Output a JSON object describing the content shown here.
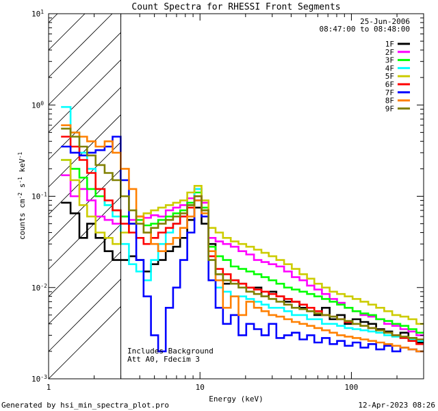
{
  "footer": {
    "generated_by": "Generated by hsi_min_spectra_plot.pro",
    "timestamp": "12-Apr-2023 08:26"
  },
  "chart_data": {
    "type": "line",
    "title": "Count Spectra for RHESSI Front Segments",
    "xlabel": "Energy (keV)",
    "ylabel": "counts cm^-2 s^-1 keV^-1",
    "xscale": "log",
    "yscale": "log",
    "xlim": [
      1,
      300
    ],
    "ylim": [
      0.001,
      10
    ],
    "x_tick_labels": [
      "1",
      "10",
      "100"
    ],
    "y_tick_labels": [
      "10^-3",
      "10^-2",
      "10^-1",
      "10^0",
      "10^1"
    ],
    "legend_header": [
      "25-Jun-2006",
      "08:47:00 to 08:48:00"
    ],
    "annotations": [
      "Includes Background",
      "Att A0, Fdecim 3"
    ],
    "hatched_region_keV": [
      1,
      3
    ],
    "series": [
      {
        "name": "1F",
        "color": "#000000",
        "x": [
          1.3,
          1.5,
          1.7,
          1.9,
          2.2,
          2.5,
          2.8,
          3.2,
          3.6,
          4.0,
          4.5,
          5.0,
          5.6,
          6.3,
          7.0,
          7.8,
          8.7,
          9.7,
          10.8,
          12,
          13.4,
          15,
          17,
          19,
          21.5,
          24,
          27,
          30,
          34,
          38,
          43,
          48,
          54,
          60,
          68,
          76,
          85,
          96,
          108,
          122,
          137,
          155,
          175,
          198,
          224,
          253,
          286
        ],
        "y": [
          0.085,
          0.065,
          0.035,
          0.05,
          0.035,
          0.025,
          0.02,
          0.02,
          0.022,
          0.02,
          0.015,
          0.018,
          0.02,
          0.025,
          0.028,
          0.035,
          0.055,
          0.075,
          0.05,
          0.03,
          0.014,
          0.011,
          0.012,
          0.011,
          0.01,
          0.01,
          0.008,
          0.009,
          0.008,
          0.007,
          0.007,
          0.006,
          0.0055,
          0.005,
          0.006,
          0.0045,
          0.005,
          0.004,
          0.0045,
          0.0042,
          0.004,
          0.0035,
          0.0033,
          0.003,
          0.0032,
          0.0028,
          0.0025
        ]
      },
      {
        "name": "2F",
        "color": "#ff00ff",
        "x": [
          1.3,
          1.5,
          1.7,
          1.9,
          2.2,
          2.5,
          2.8,
          3.2,
          3.6,
          4.0,
          4.5,
          5.0,
          5.6,
          6.3,
          7.0,
          7.8,
          8.7,
          9.7,
          10.8,
          12,
          13.4,
          15,
          17,
          19,
          21.5,
          24,
          27,
          30,
          34,
          38,
          43,
          48,
          54,
          60,
          68,
          76,
          85,
          96,
          108,
          122,
          137,
          155,
          175,
          198,
          224,
          253,
          286
        ],
        "y": [
          0.17,
          0.1,
          0.12,
          0.09,
          0.06,
          0.055,
          0.05,
          0.06,
          0.055,
          0.06,
          0.058,
          0.062,
          0.06,
          0.07,
          0.075,
          0.08,
          0.095,
          0.12,
          0.085,
          0.035,
          0.032,
          0.03,
          0.028,
          0.025,
          0.023,
          0.02,
          0.019,
          0.018,
          0.017,
          0.015,
          0.013,
          0.012,
          0.0105,
          0.0095,
          0.0085,
          0.0075,
          0.0068,
          0.006,
          0.0055,
          0.005,
          0.0048,
          0.0045,
          0.004,
          0.0038,
          0.0035,
          0.0033,
          0.003
        ]
      },
      {
        "name": "3F",
        "color": "#00ff00",
        "x": [
          1.3,
          1.5,
          1.7,
          1.9,
          2.2,
          2.5,
          2.8,
          3.2,
          3.6,
          4.0,
          4.5,
          5.0,
          5.6,
          6.3,
          7.0,
          7.8,
          8.7,
          9.7,
          10.8,
          12,
          13.4,
          15,
          17,
          19,
          21.5,
          24,
          27,
          30,
          34,
          38,
          43,
          48,
          54,
          60,
          68,
          76,
          85,
          96,
          108,
          122,
          137,
          155,
          175,
          198,
          224,
          253,
          286
        ],
        "y": [
          0.25,
          0.2,
          0.16,
          0.12,
          0.1,
          0.08,
          0.07,
          0.06,
          0.05,
          0.055,
          0.048,
          0.05,
          0.055,
          0.06,
          0.065,
          0.07,
          0.085,
          0.11,
          0.075,
          0.028,
          0.022,
          0.02,
          0.017,
          0.016,
          0.015,
          0.014,
          0.013,
          0.012,
          0.011,
          0.01,
          0.0095,
          0.009,
          0.0085,
          0.008,
          0.0075,
          0.007,
          0.0065,
          0.006,
          0.0055,
          0.0052,
          0.005,
          0.0045,
          0.0043,
          0.004,
          0.0038,
          0.0035,
          0.0032
        ]
      },
      {
        "name": "4F",
        "color": "#00ffff",
        "x": [
          1.3,
          1.5,
          1.7,
          1.9,
          2.2,
          2.5,
          2.8,
          3.2,
          3.6,
          4.0,
          4.5,
          5.0,
          5.6,
          6.3,
          7.0,
          7.8,
          8.7,
          9.7,
          10.8,
          12,
          13.4,
          15,
          17,
          19,
          21.5,
          24,
          27,
          30,
          34,
          38,
          43,
          48,
          54,
          60,
          68,
          76,
          85,
          96,
          108,
          122,
          137,
          155,
          175,
          198,
          224,
          253,
          286
        ],
        "y": [
          0.95,
          0.5,
          0.3,
          0.2,
          0.12,
          0.08,
          0.06,
          0.03,
          0.018,
          0.015,
          0.012,
          0.02,
          0.03,
          0.04,
          0.05,
          0.06,
          0.08,
          0.12,
          0.07,
          0.02,
          0.01,
          0.009,
          0.008,
          0.008,
          0.0075,
          0.007,
          0.0065,
          0.006,
          0.006,
          0.0055,
          0.005,
          0.005,
          0.0045,
          0.0045,
          0.004,
          0.004,
          0.0038,
          0.0036,
          0.0035,
          0.0034,
          0.0033,
          0.0032,
          0.003,
          0.0029,
          0.0028,
          0.0027,
          0.0026
        ]
      },
      {
        "name": "5F",
        "color": "#cccc00",
        "x": [
          1.3,
          1.5,
          1.7,
          1.9,
          2.2,
          2.5,
          2.8,
          3.2,
          3.6,
          4.0,
          4.5,
          5.0,
          5.6,
          6.3,
          7.0,
          7.8,
          8.7,
          9.7,
          10.8,
          12,
          13.4,
          15,
          17,
          19,
          21.5,
          24,
          27,
          30,
          34,
          38,
          43,
          48,
          54,
          60,
          68,
          76,
          85,
          96,
          108,
          122,
          137,
          155,
          175,
          198,
          224,
          253,
          286
        ],
        "y": [
          0.25,
          0.15,
          0.08,
          0.06,
          0.04,
          0.035,
          0.03,
          0.04,
          0.05,
          0.06,
          0.065,
          0.07,
          0.075,
          0.08,
          0.085,
          0.09,
          0.11,
          0.13,
          0.09,
          0.045,
          0.04,
          0.035,
          0.032,
          0.03,
          0.028,
          0.026,
          0.024,
          0.022,
          0.02,
          0.018,
          0.016,
          0.014,
          0.0125,
          0.011,
          0.01,
          0.009,
          0.0085,
          0.008,
          0.0075,
          0.007,
          0.0065,
          0.006,
          0.0055,
          0.005,
          0.0048,
          0.0045,
          0.004
        ]
      },
      {
        "name": "6F",
        "color": "#ff0000",
        "x": [
          1.3,
          1.5,
          1.7,
          1.9,
          2.2,
          2.5,
          2.8,
          3.2,
          3.6,
          4.0,
          4.5,
          5.0,
          5.6,
          6.3,
          7.0,
          7.8,
          8.7,
          9.7,
          10.8,
          12,
          13.4,
          15,
          17,
          19,
          21.5,
          24,
          27,
          30,
          34,
          38,
          43,
          48,
          54,
          60,
          68,
          76,
          85,
          96,
          108,
          122,
          137,
          155,
          175,
          198,
          224,
          253,
          286
        ],
        "y": [
          0.45,
          0.35,
          0.25,
          0.18,
          0.12,
          0.09,
          0.07,
          0.05,
          0.04,
          0.035,
          0.03,
          0.035,
          0.04,
          0.045,
          0.05,
          0.06,
          0.075,
          0.1,
          0.07,
          0.022,
          0.016,
          0.014,
          0.012,
          0.011,
          0.01,
          0.0095,
          0.009,
          0.0085,
          0.008,
          0.0075,
          0.007,
          0.0065,
          0.006,
          0.0055,
          0.005,
          0.0048,
          0.0045,
          0.0042,
          0.004,
          0.0038,
          0.0036,
          0.0034,
          0.0032,
          0.003,
          0.0028,
          0.0026,
          0.0024
        ]
      },
      {
        "name": "7F",
        "color": "#0000ff",
        "x": [
          1.3,
          1.5,
          1.7,
          1.9,
          2.2,
          2.5,
          2.8,
          3.2,
          3.6,
          4.0,
          4.5,
          5.0,
          5.6,
          6.3,
          7.0,
          7.8,
          8.7,
          9.7,
          10.8,
          12,
          13.4,
          15,
          17,
          19,
          21.5,
          24,
          27,
          30,
          34,
          38,
          43,
          48,
          54,
          60,
          68,
          76,
          85,
          96,
          108,
          122,
          137,
          155,
          175,
          198,
          224,
          253,
          286
        ],
        "y": [
          0.35,
          0.3,
          0.28,
          0.3,
          0.32,
          0.35,
          0.45,
          0.15,
          0.05,
          0.02,
          0.008,
          0.003,
          0.002,
          0.006,
          0.01,
          0.02,
          0.04,
          0.09,
          0.06,
          0.012,
          0.006,
          0.004,
          0.005,
          0.003,
          0.004,
          0.0035,
          0.003,
          0.004,
          0.0028,
          0.003,
          0.0032,
          0.0027,
          0.003,
          0.0025,
          0.0028,
          0.0024,
          0.0026,
          0.0023,
          0.0025,
          0.0022,
          0.0024,
          0.0021,
          0.0023,
          0.002,
          0.0022,
          0.0021,
          0.002
        ]
      },
      {
        "name": "8F",
        "color": "#ff8000",
        "x": [
          1.3,
          1.5,
          1.7,
          1.9,
          2.2,
          2.5,
          2.8,
          3.2,
          3.6,
          4.0,
          4.5,
          5.0,
          5.6,
          6.3,
          7.0,
          7.8,
          8.7,
          9.7,
          10.8,
          12,
          13.4,
          15,
          17,
          19,
          21.5,
          24,
          27,
          30,
          34,
          38,
          43,
          48,
          54,
          60,
          68,
          76,
          85,
          96,
          108,
          122,
          137,
          155,
          175,
          198,
          224,
          253,
          286
        ],
        "y": [
          0.6,
          0.5,
          0.45,
          0.4,
          0.35,
          0.4,
          0.3,
          0.2,
          0.12,
          0.06,
          0.04,
          0.03,
          0.025,
          0.03,
          0.035,
          0.045,
          0.06,
          0.09,
          0.065,
          0.025,
          0.012,
          0.006,
          0.008,
          0.005,
          0.007,
          0.006,
          0.0055,
          0.005,
          0.0048,
          0.0045,
          0.0042,
          0.004,
          0.0038,
          0.0036,
          0.0034,
          0.0032,
          0.003,
          0.0029,
          0.0028,
          0.0027,
          0.0026,
          0.0025,
          0.0024,
          0.0023,
          0.0022,
          0.0021,
          0.002
        ]
      },
      {
        "name": "9F",
        "color": "#808000",
        "x": [
          1.3,
          1.5,
          1.7,
          1.9,
          2.2,
          2.5,
          2.8,
          3.2,
          3.6,
          4.0,
          4.5,
          5.0,
          5.6,
          6.3,
          7.0,
          7.8,
          8.7,
          9.7,
          10.8,
          12,
          13.4,
          15,
          17,
          19,
          21.5,
          24,
          27,
          30,
          34,
          38,
          43,
          48,
          54,
          60,
          68,
          76,
          85,
          96,
          108,
          122,
          137,
          155,
          175,
          198,
          224,
          253,
          286
        ],
        "y": [
          0.55,
          0.45,
          0.35,
          0.28,
          0.22,
          0.18,
          0.15,
          0.1,
          0.07,
          0.05,
          0.04,
          0.045,
          0.05,
          0.055,
          0.06,
          0.065,
          0.08,
          0.1,
          0.07,
          0.02,
          0.014,
          0.012,
          0.011,
          0.01,
          0.009,
          0.0085,
          0.008,
          0.0075,
          0.007,
          0.0065,
          0.006,
          0.0058,
          0.0055,
          0.0052,
          0.005,
          0.0048,
          0.0045,
          0.0043,
          0.004,
          0.0038,
          0.0036,
          0.0034,
          0.0032,
          0.003,
          0.0029,
          0.0028,
          0.0027
        ]
      }
    ]
  }
}
